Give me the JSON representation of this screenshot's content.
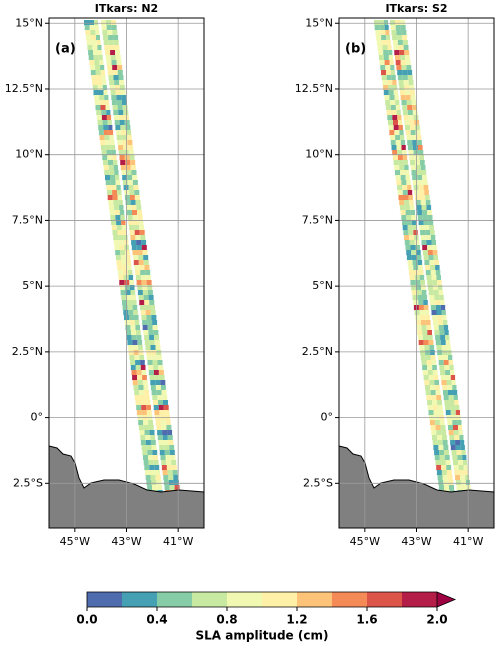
{
  "panels": [
    {
      "title": "ITkars: N2",
      "label": "(a)",
      "xlim": [
        -46,
        -40
      ],
      "ylim": [
        -4.2,
        15.2
      ],
      "xticks": [
        {
          "value": -45,
          "label": "45°W"
        },
        {
          "value": -43,
          "label": "43°W"
        },
        {
          "value": -41,
          "label": "41°W"
        }
      ],
      "yticks": [
        {
          "value": -2.5,
          "label": "2.5°S"
        },
        {
          "value": 0,
          "label": "0°"
        },
        {
          "value": 2.5,
          "label": "2.5°N"
        },
        {
          "value": 5,
          "label": "5°N"
        },
        {
          "value": 7.5,
          "label": "7.5°N"
        },
        {
          "value": 10,
          "label": "10°N"
        },
        {
          "value": 12.5,
          "label": "12.5°N"
        },
        {
          "value": 15,
          "label": "15°N"
        }
      ]
    },
    {
      "title": "ITkars: S2",
      "label": "(b)",
      "xlim": [
        -46,
        -40
      ],
      "ylim": [
        -4.2,
        15.2
      ],
      "xticks": [
        {
          "value": -45,
          "label": "45°W"
        },
        {
          "value": -43,
          "label": "43°W"
        },
        {
          "value": -41,
          "label": "41°W"
        }
      ],
      "yticks": [
        {
          "value": -2.5,
          "label": "2.5°S"
        },
        {
          "value": 0,
          "label": "0°"
        },
        {
          "value": 2.5,
          "label": "2.5°N"
        },
        {
          "value": 5,
          "label": "5°N"
        },
        {
          "value": 7.5,
          "label": "7.5°N"
        },
        {
          "value": 10,
          "label": "10°N"
        },
        {
          "value": 12.5,
          "label": "12.5°N"
        },
        {
          "value": 15,
          "label": "15°N"
        }
      ]
    }
  ],
  "colorbar": {
    "label": "SLA amplitude (cm)",
    "lim": [
      0,
      2
    ],
    "ticks": [
      {
        "value": 0,
        "label": "0.0"
      },
      0.4,
      0.8,
      1.2,
      1.6,
      {
        "value": 2,
        "label": "2.0"
      }
    ],
    "colors": [
      "#4f6cae",
      "#45a0b4",
      "#86cda7",
      "#c7e9a1",
      "#f0f8b2",
      "#fef0a6",
      "#fdc479",
      "#f48b56",
      "#dd5449",
      "#b31d48"
    ],
    "extend_color": "#9e0142"
  }
}
